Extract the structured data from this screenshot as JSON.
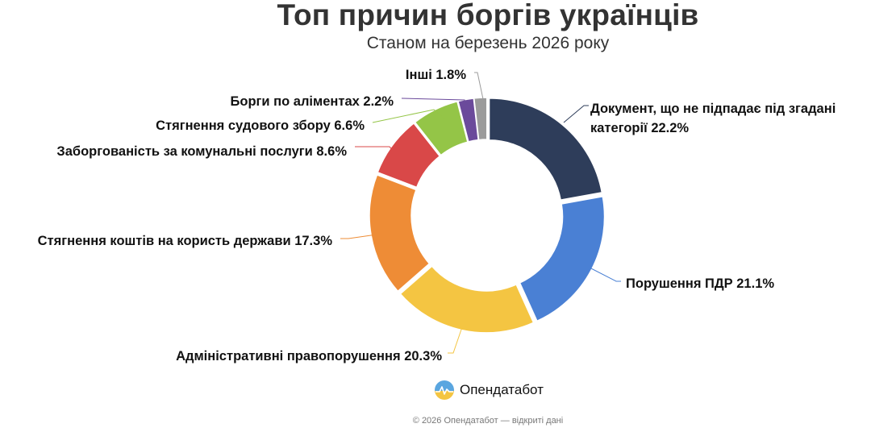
{
  "chart_data": {
    "type": "pie",
    "title": "Топ причин боргів українців",
    "subtitle": "Станом на березень 2026 року",
    "categories": [
      "Документ, що не підпадає під згадані категорії",
      "Порушення ПДР",
      "Адміністративні правопорушення",
      "Стягнення коштів на користь держави",
      "Заборгованість за комунальні послуги",
      "Стягнення судового збору",
      "Борги по аліментах",
      "Інші"
    ],
    "values": [
      22.2,
      21.1,
      20.3,
      17.3,
      8.6,
      6.6,
      2.2,
      1.8
    ],
    "value_suffix": "%",
    "colors": [
      "#2e3d5a",
      "#4a80d4",
      "#f4c542",
      "#ee8c36",
      "#d94848",
      "#94c547",
      "#6b4a9b",
      "#9b9b9b"
    ],
    "labels": [
      {
        "lines": [
          "Документ, що не підпадає під згадані",
          "категорії 22.2%"
        ]
      },
      {
        "lines": [
          "Порушення ПДР 21.1%"
        ]
      },
      {
        "lines": [
          "Адміністративні правопорушення 20.3%"
        ]
      },
      {
        "lines": [
          "Стягнення коштів на користь держави 17.3%"
        ]
      },
      {
        "lines": [
          "Заборгованість за комунальні послуги 8.6%"
        ]
      },
      {
        "lines": [
          "Стягнення судового збору 6.6%"
        ]
      },
      {
        "lines": [
          "Борги по аліментах 2.2%"
        ]
      },
      {
        "lines": [
          "Інші 1.8%"
        ]
      }
    ],
    "donut": true,
    "legend": "none",
    "data_labels": "outside with leader lines"
  },
  "brand": {
    "name": "Опендатабот",
    "logo_colors": [
      "#5aa6e0",
      "#f4c542"
    ]
  },
  "footer": {
    "text": "© 2026 Опендатабот — відкриті дані"
  }
}
